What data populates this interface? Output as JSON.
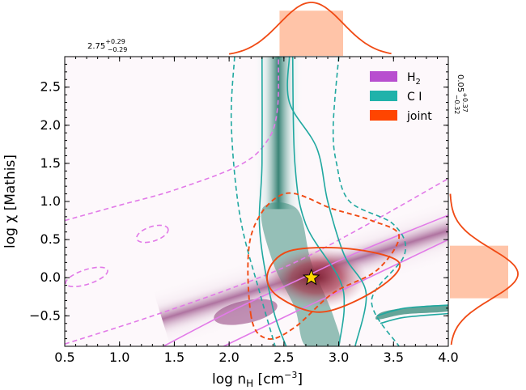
{
  "chart_data": {
    "type": "contour",
    "xlabel": "log n_H [cm^-3]",
    "ylabel": "log χ [Mathis]",
    "xlabel_main": "log n",
    "xlabel_sub": "H",
    "xlabel_unit": " [cm",
    "xlabel_exp": "−3",
    "xlabel_close": "]",
    "ylabel_main": "log χ [Mathis]",
    "xlim": [
      0.5,
      4.0
    ],
    "ylim": [
      -0.9,
      2.9
    ],
    "xticks": [
      0.5,
      1.0,
      1.5,
      2.0,
      2.5,
      3.0,
      3.5,
      4.0
    ],
    "xtick_labels": [
      "0.5",
      "1.0",
      "1.5",
      "2.0",
      "2.5",
      "3.0",
      "3.5",
      "4.0"
    ],
    "yticks": [
      -0.5,
      0.0,
      0.5,
      1.0,
      1.5,
      2.0,
      2.5
    ],
    "ytick_labels": [
      "−0.5",
      "0.0",
      "0.5",
      "1.0",
      "1.5",
      "2.0",
      "2.5"
    ],
    "legend": [
      {
        "label": "H",
        "sub": "2",
        "color": "#b84fcf"
      },
      {
        "label": "C I",
        "sub": "",
        "color": "#20b2aa"
      },
      {
        "label": "joint",
        "sub": "",
        "color": "#ff4500"
      }
    ],
    "best_fit": {
      "x": 2.75,
      "y": 0.0,
      "marker": "star",
      "color": "#ffd700"
    },
    "marginal_x": {
      "median": 2.75,
      "err_plus": 0.29,
      "err_minus": 0.29,
      "label": "2.75",
      "plus": "+0.29",
      "minus": "−0.29"
    },
    "marginal_y": {
      "median": 0.05,
      "err_plus": 0.37,
      "err_minus": 0.32,
      "label": "0.05",
      "plus": "+0.37",
      "minus": "−0.32"
    },
    "contours": {
      "h2_inner": [
        [
          1.4,
          -0.9
        ],
        [
          2.0,
          -0.45
        ],
        [
          2.6,
          -0.05
        ],
        [
          3.2,
          0.35
        ],
        [
          4.0,
          0.82
        ]
      ],
      "h2_inner2": [
        [
          1.95,
          -0.9
        ],
        [
          2.6,
          -0.45
        ],
        [
          3.2,
          -0.05
        ],
        [
          4.0,
          0.5
        ]
      ],
      "h2_dashed": [
        [
          0.5,
          -0.87
        ],
        [
          1.2,
          -0.55
        ],
        [
          2.0,
          -0.15
        ],
        [
          2.6,
          0.2
        ],
        [
          3.2,
          0.65
        ],
        [
          4.0,
          1.3
        ]
      ],
      "h2_dashed_upper": [
        [
          0.5,
          0.75
        ],
        [
          1.0,
          0.95
        ],
        [
          1.5,
          1.15
        ],
        [
          2.1,
          1.48
        ],
        [
          2.35,
          1.8
        ],
        [
          2.44,
          2.2
        ],
        [
          2.45,
          2.9
        ]
      ],
      "h2_islands": [
        [
          [
            0.5,
            -0.2
          ],
          [
            0.9,
            0.22
          ],
          [
            0.5,
            0.05
          ]
        ],
        [
          [
            1.15,
            0.4
          ],
          [
            1.45,
            0.75
          ],
          [
            1.15,
            0.65
          ]
        ]
      ],
      "ci_solid_left": [
        [
          2.3,
          2.9
        ],
        [
          2.3,
          1.5
        ],
        [
          2.28,
          0.6
        ],
        [
          2.4,
          -0.4
        ],
        [
          2.52,
          -0.9
        ]
      ],
      "ci_solid_right": [
        [
          2.58,
          2.9
        ],
        [
          2.6,
          1.5
        ],
        [
          2.7,
          0.7
        ],
        [
          3.0,
          0.0
        ],
        [
          3.05,
          -0.4
        ],
        [
          3.0,
          -0.9
        ]
      ],
      "ci_solid_right2": [
        [
          2.55,
          2.9
        ],
        [
          2.55,
          2.3
        ],
        [
          2.8,
          1.7
        ],
        [
          2.9,
          1.0
        ],
        [
          3.05,
          0.3
        ],
        [
          3.25,
          -0.2
        ],
        [
          3.15,
          -0.9
        ]
      ],
      "ci_dashed_left": [
        [
          2.05,
          2.9
        ],
        [
          2.02,
          2.0
        ],
        [
          2.1,
          0.8
        ],
        [
          2.28,
          -0.2
        ],
        [
          2.42,
          -0.9
        ]
      ],
      "ci_dashed_right": [
        [
          3.0,
          2.9
        ],
        [
          2.95,
          2.0
        ],
        [
          2.98,
          1.5
        ],
        [
          3.1,
          1.0
        ],
        [
          3.5,
          0.7
        ],
        [
          3.6,
          0.3
        ],
        [
          3.3,
          -0.3
        ],
        [
          3.55,
          -0.9
        ]
      ],
      "joint_solid": [
        [
          2.35,
          0.05
        ],
        [
          2.55,
          0.35
        ],
        [
          3.1,
          0.38
        ],
        [
          3.55,
          0.2
        ],
        [
          3.35,
          -0.15
        ],
        [
          2.85,
          -0.45
        ],
        [
          2.45,
          -0.25
        ]
      ],
      "joint_dashed": [
        [
          2.2,
          -0.5
        ],
        [
          2.2,
          0.55
        ],
        [
          2.5,
          1.1
        ],
        [
          2.95,
          0.9
        ],
        [
          3.3,
          0.75
        ],
        [
          3.55,
          0.55
        ],
        [
          3.35,
          0.1
        ],
        [
          2.95,
          -0.2
        ],
        [
          2.6,
          -0.65
        ],
        [
          2.35,
          -0.8
        ]
      ]
    }
  }
}
